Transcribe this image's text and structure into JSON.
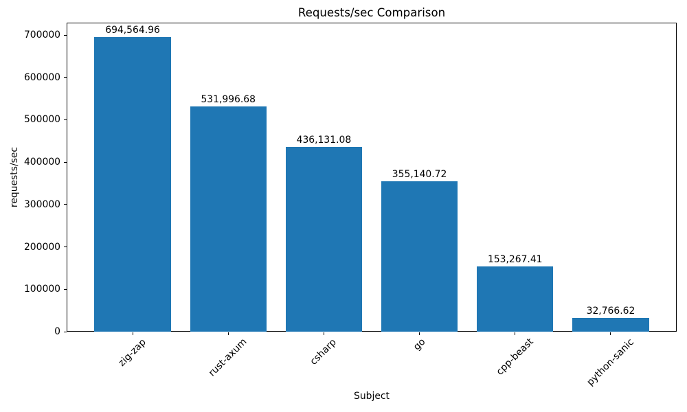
{
  "chart_data": {
    "type": "bar",
    "title": "Requests/sec Comparison",
    "xlabel": "Subject",
    "ylabel": "requests/sec",
    "categories": [
      "zig-zap",
      "rust-axum",
      "csharp",
      "go",
      "cpp-beast",
      "python-sanic"
    ],
    "values": [
      694564.96,
      531996.68,
      436131.08,
      355140.72,
      153267.41,
      32766.62
    ],
    "value_labels": [
      "694,564.96",
      "531,996.68",
      "436,131.08",
      "355,140.72",
      "153,267.41",
      "32,766.62"
    ],
    "yticks": [
      "0",
      "100000",
      "200000",
      "300000",
      "400000",
      "500000",
      "600000",
      "700000"
    ],
    "ylim": [
      0,
      729293
    ],
    "xlim_pad_units": 0.69,
    "bar_width_fraction": 0.8,
    "bar_color": "#1f77b4",
    "axis_color": "#000000",
    "grid": false,
    "legend": "none",
    "x_tick_rotation": 45
  }
}
